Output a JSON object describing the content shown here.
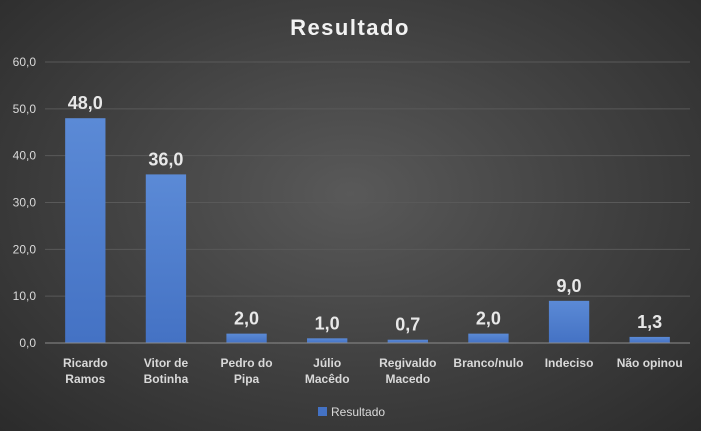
{
  "chart_data": {
    "type": "bar",
    "title": "Resultado",
    "categories": [
      [
        "Ricardo",
        "Ramos"
      ],
      [
        "Vitor de",
        "Botinha"
      ],
      [
        "Pedro do",
        "Pipa"
      ],
      [
        "Júlio",
        "Macêdo"
      ],
      [
        "Regivaldo",
        "Macedo"
      ],
      [
        "Branco/nulo"
      ],
      [
        "Indeciso"
      ],
      [
        "Não opinou"
      ]
    ],
    "series": [
      {
        "name": "Resultado",
        "values": [
          48.0,
          36.0,
          2.0,
          1.0,
          0.7,
          2.0,
          9.0,
          1.3
        ],
        "data_labels": [
          "48,0",
          "36,0",
          "2,0",
          "1,0",
          "0,7",
          "2,0",
          "9,0",
          "1,3"
        ]
      }
    ],
    "ylim": [
      0,
      60
    ],
    "yticks": [
      "0,0",
      "10,0",
      "20,0",
      "30,0",
      "40,0",
      "50,0",
      "60,0"
    ],
    "grid": true,
    "legend": "bottom",
    "colors": {
      "bar": "#4472c4",
      "bar_top": "#5b8ad6"
    }
  }
}
